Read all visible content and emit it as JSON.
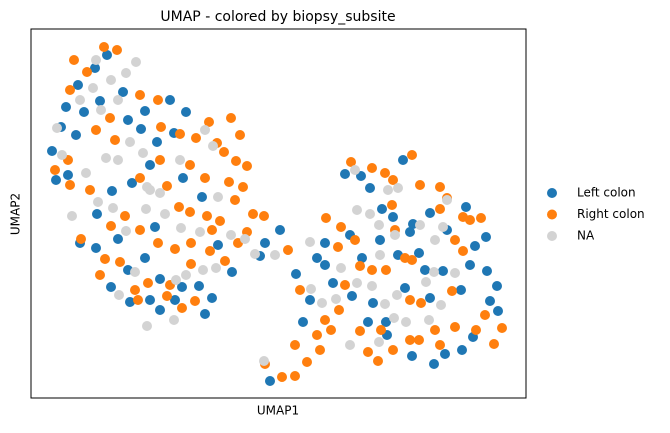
{
  "chart_data": {
    "type": "scatter",
    "title": "UMAP - colored by biopsy_subsite",
    "x_label": "UMAP1",
    "y_label": "UMAP2",
    "xlim": [
      31,
      526
    ],
    "ylim": [
      2,
      371
    ],
    "legend": "outside-right",
    "series": [
      {
        "name": "Left colon",
        "color": "#1f77b4",
        "x": [
          52,
          66,
          78,
          95,
          107,
          84,
          61,
          76,
          100,
          123,
          128,
          145,
          157,
          170,
          186,
          174,
          150,
          132,
          112,
          97,
          80,
          96,
          111,
          128,
          145,
          160,
          175,
          199,
          212,
          205,
          160,
          150,
          130,
          182,
          218,
          232,
          265,
          280,
          260,
          270,
          296,
          317,
          325,
          345,
          361,
          350,
          370,
          382,
          393,
          398,
          410,
          419,
          380,
          362,
          352,
          333,
          310,
          373,
          386,
          405,
          425,
          430,
          461,
          470,
          487,
          497,
          490,
          486,
          466,
          475,
          443,
          445,
          462,
          473,
          498,
          434,
          412,
          387,
          368,
          303,
          413,
          403,
          430,
          447,
          325,
          183,
          202,
          141,
          155,
          118,
          68,
          56
        ],
        "values": [
          249,
          293,
          315,
          332,
          345,
          288,
          273,
          265,
          299,
          308,
          280,
          289,
          258,
          300,
          288,
          267,
          235,
          217,
          209,
          186,
          157,
          152,
          113,
          130,
          142,
          121,
          100,
          114,
          102,
          86,
          90,
          100,
          98,
          113,
          155,
          128,
          157,
          170,
          144,
          19,
          126,
          142,
          135,
          226,
          224,
          165,
          212,
          191,
          183,
          145,
          168,
          147,
          160,
          142,
          104,
          117,
          100,
          97,
          78,
          112,
          130,
          102,
          110,
          135,
          129,
          114,
          99,
          163,
          193,
          154,
          129,
          46,
          50,
          63,
          89,
          36,
          44,
          65,
          78,
          78,
          176,
          240,
          187,
          170,
          157,
          222,
          203,
          271,
          173,
          161,
          225,
          220
        ]
      },
      {
        "name": "Right colon",
        "color": "#ff7f0e",
        "x": [
          74,
          104,
          117,
          87,
          70,
          96,
          110,
          115,
          140,
          158,
          161,
          180,
          196,
          209,
          224,
          236,
          247,
          243,
          229,
          205,
          190,
          167,
          179,
          190,
          207,
          220,
          238,
          247,
          253,
          235,
          212,
          191,
          175,
          158,
          140,
          125,
          111,
          90,
          105,
          120,
          135,
          148,
          170,
          191,
          210,
          225,
          195,
          182,
          167,
          138,
          100,
          81,
          140,
          160,
          264,
          288,
          300,
          295,
          307,
          320,
          331,
          325,
          317,
          339,
          345,
          360,
          355,
          338,
          341,
          326,
          351,
          372,
          393,
          385,
          420,
          440,
          455,
          463,
          481,
          470,
          463,
          452,
          485,
          502,
          494,
          476,
          455,
          435,
          410,
          393,
          378,
          368,
          360,
          381,
          421,
          410,
          405,
          395,
          386,
          372,
          392,
          412,
          440,
          412,
          419,
          440,
          265,
          282,
          295,
          447,
          240,
          231,
          217,
          70,
          55,
          68
        ],
        "values": [
          340,
          353,
          350,
          328,
          310,
          270,
          282,
          260,
          305,
          300,
          273,
          266,
          262,
          278,
          248,
          239,
          234,
          213,
          218,
          222,
          235,
          214,
          193,
          188,
          184,
          179,
          157,
          168,
          186,
          200,
          170,
          157,
          151,
          157,
          170,
          184,
          174,
          210,
          141,
          138,
          110,
          117,
          115,
          136,
          149,
          139,
          99,
          92,
          104,
          100,
          125,
          161,
          222,
          240,
          184,
          150,
          110,
          55,
          38,
          50,
          70,
          80,
          65,
          90,
          115,
          134,
          160,
          153,
          173,
          182,
          238,
          232,
          220,
          227,
          215,
          191,
          160,
          183,
          182,
          180,
          149,
          109,
          85,
          72,
          56,
          70,
          73,
          70,
          60,
          50,
          39,
          48,
          69,
          70,
          97,
          100,
          142,
          170,
          130,
          130,
          195,
          245,
          213,
          140,
          60,
          55,
          36,
          23,
          24,
          202,
          265,
          282,
          257,
          215,
          230,
          240
        ]
      },
      {
        "name": "NA",
        "color": "#d3d3d3",
        "x": [
          57,
          80,
          93,
          111,
          136,
          126,
          118,
          101,
          143,
          118,
          106,
          86,
          72,
          98,
          113,
          126,
          146,
          165,
          181,
          200,
          218,
          231,
          245,
          255,
          203,
          216,
          186,
          176,
          174,
          147,
          119,
          135,
          213,
          205,
          180,
          160,
          150,
          147,
          130,
          96,
          62,
          357,
          370,
          388,
          398,
          395,
          379,
          357,
          341,
          322,
          336,
          385,
          379,
          394,
          380,
          426,
          441,
          429,
          406,
          455,
          447,
          435,
          420,
          434,
          264,
          310,
          350,
          443,
          372,
          311,
          275,
          355,
          397
        ],
        "values": [
          272,
          300,
          312,
          320,
          338,
          327,
          300,
          290,
          247,
          240,
          242,
          227,
          184,
          198,
          192,
          169,
          191,
          186,
          172,
          168,
          203,
          165,
          161,
          146,
          130,
          132,
          125,
          120,
          80,
          74,
          105,
          128,
          254,
          270,
          240,
          207,
          210,
          213,
          258,
          340,
          245,
          190,
          186,
          210,
          212,
          165,
          175,
          117,
          132,
          97,
          101,
          96,
          58,
          82,
          145,
          118,
          95,
          80,
          78,
          127,
          200,
          160,
          175,
          128,
          39,
          158,
          55,
          173,
          114,
          111,
          145,
          230,
          105
        ]
      }
    ]
  }
}
